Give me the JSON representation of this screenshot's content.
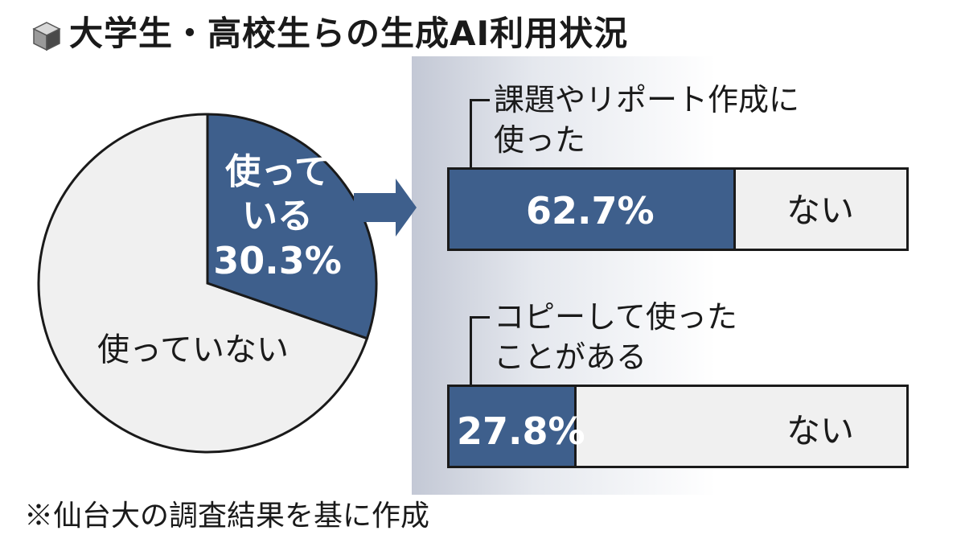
{
  "title": "大学生・高校生らの生成AI利用状況",
  "footnote": "※仙台大の調査結果を基に作成",
  "chart_data": [
    {
      "type": "pie",
      "slices": [
        {
          "label_lines": [
            "使って",
            "いる"
          ],
          "value": 30.3,
          "value_label": "30.3%",
          "color": "#3e5f8c"
        },
        {
          "label_lines": [
            "使っていない"
          ],
          "value": 69.7,
          "color": "#f0f0f0"
        }
      ]
    },
    {
      "type": "bar",
      "orientation": "horizontal",
      "stacked": true,
      "bars": [
        {
          "label_lines": [
            "課題やリポート作成に",
            "使った"
          ],
          "value": 62.7,
          "value_label": "62.7%",
          "rest_label": "ない"
        },
        {
          "label_lines": [
            "コピーして使った",
            "ことがある"
          ],
          "value": 27.8,
          "value_label": "27.8%",
          "rest_label": "ない"
        }
      ],
      "colors": {
        "yes": "#3e5f8c",
        "no": "#f0f0f0"
      }
    }
  ]
}
